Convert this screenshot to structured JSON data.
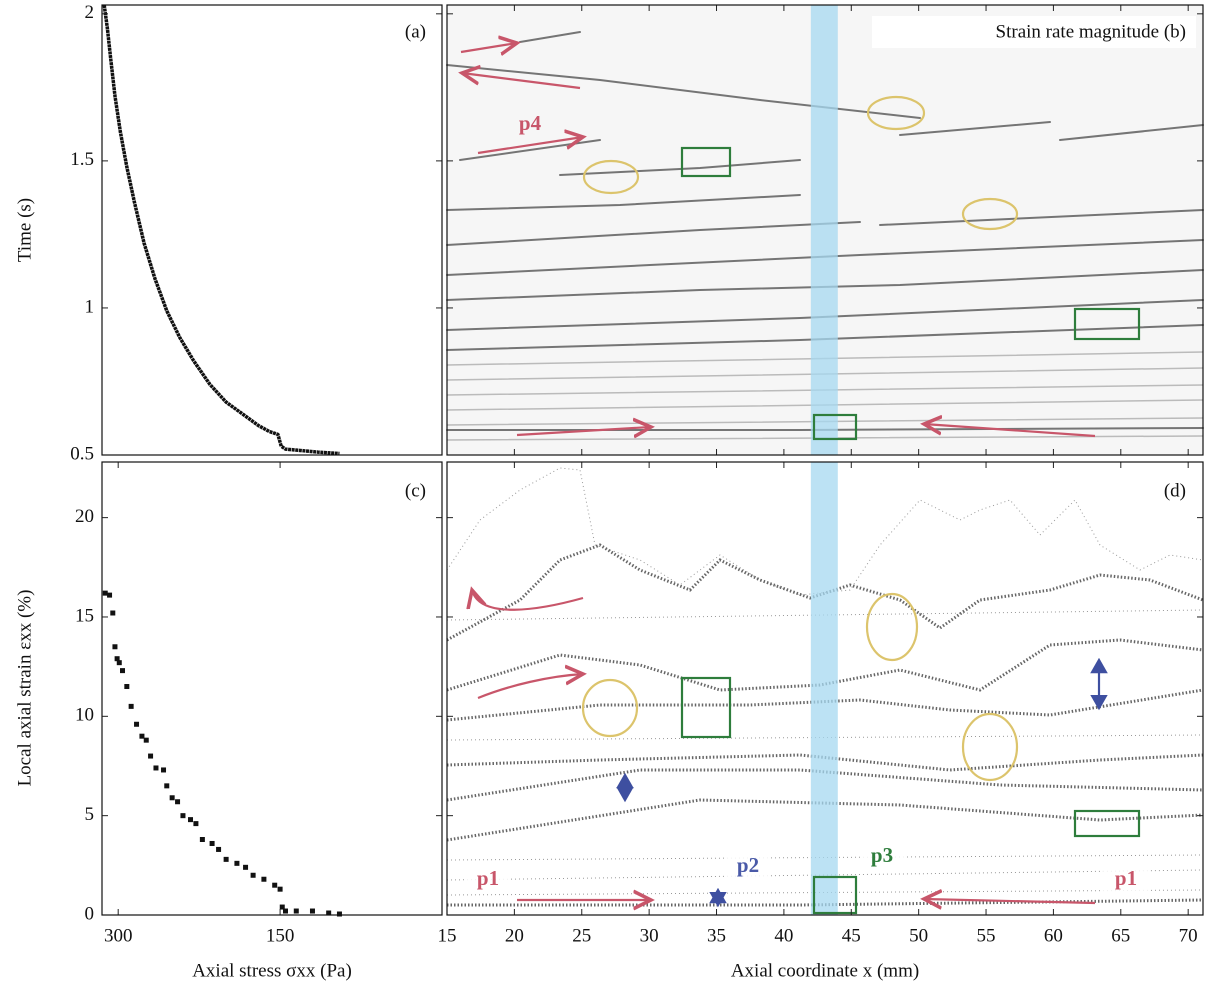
{
  "chart_data": [
    {
      "type": "line",
      "panel_label": "(a)",
      "y_label": "Time (s)",
      "color": "#111111",
      "xlim": [
        315,
        0
      ],
      "ylim": [
        0.5,
        2.03
      ],
      "yticks": [
        0.5,
        1,
        1.5,
        2
      ],
      "x": [
        313,
        310,
        307,
        303,
        298,
        292,
        285,
        276,
        266,
        255,
        243,
        230,
        215,
        200,
        185,
        170,
        160,
        152,
        149,
        145,
        130,
        115,
        95
      ],
      "values": [
        2.03,
        1.95,
        1.85,
        1.72,
        1.6,
        1.48,
        1.36,
        1.22,
        1.1,
        0.99,
        0.9,
        0.82,
        0.74,
        0.68,
        0.64,
        0.6,
        0.58,
        0.57,
        0.53,
        0.52,
        0.515,
        0.51,
        0.505
      ]
    },
    {
      "type": "heatmap",
      "title": "Strain rate magnitude (b)",
      "annotations": [
        "p4"
      ],
      "xlim": [
        15,
        71.1
      ],
      "ylim": [
        0.5,
        2.03
      ],
      "yticks": [
        0.5,
        1,
        1.5,
        2
      ],
      "xticks": [
        15,
        20,
        25,
        30,
        35,
        40,
        45,
        50,
        55,
        60,
        65,
        70
      ],
      "band": [
        42,
        44
      ],
      "band_color": "#a6d8f0"
    },
    {
      "type": "scatter",
      "panel_label": "(c)",
      "x_label": "Axial stress σxx (Pa)",
      "y_label": "Local axial strain εxx (%)",
      "color": "#111111",
      "xlim": [
        315,
        0
      ],
      "ylim": [
        0,
        22.8
      ],
      "xticks": [
        300,
        150
      ],
      "yticks": [
        0,
        5,
        10,
        15,
        20
      ],
      "x": [
        312,
        308,
        305,
        303,
        301,
        299,
        296,
        292,
        288,
        283,
        278,
        274,
        270,
        265,
        258,
        255,
        250,
        245,
        240,
        233,
        228,
        222,
        213,
        207,
        200,
        190,
        182,
        175,
        165,
        155,
        150,
        148,
        145,
        135,
        120,
        105,
        95
      ],
      "values": [
        16.2,
        16.1,
        15.2,
        13.5,
        12.9,
        12.7,
        12.3,
        11.5,
        10.5,
        9.6,
        9.0,
        8.8,
        8.0,
        7.4,
        7.3,
        6.5,
        5.9,
        5.7,
        5.0,
        4.8,
        4.6,
        3.8,
        3.6,
        3.3,
        2.8,
        2.6,
        2.4,
        2.0,
        1.8,
        1.5,
        1.3,
        0.4,
        0.2,
        0.2,
        0.2,
        0.1,
        0.05
      ]
    },
    {
      "type": "mesh",
      "panel_label": "(d)",
      "x_label": "Axial coordinate x (mm)",
      "annotations": [
        "p1",
        "p2",
        "p3",
        "p1"
      ],
      "xlim": [
        15,
        71.1
      ],
      "ylim": [
        0,
        22.8
      ],
      "xticks": [
        15,
        20,
        25,
        30,
        35,
        40,
        45,
        50,
        55,
        60,
        65,
        70
      ],
      "yticks": [
        0,
        5,
        10,
        15,
        20
      ],
      "band": [
        42,
        44
      ],
      "band_color": "#a6d8f0"
    }
  ]
}
